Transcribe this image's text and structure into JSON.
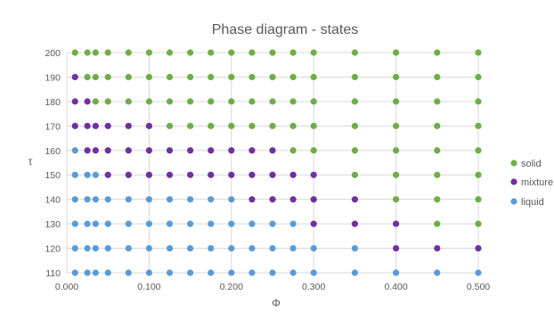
{
  "chart_data": {
    "type": "scatter",
    "title": "Phase diagram - states",
    "xlabel": "Φ",
    "ylabel": "τ",
    "xlim": [
      0,
      0.5
    ],
    "ylim": [
      110,
      200
    ],
    "grid": true,
    "legend_position": "right",
    "x_ticks": [
      0,
      0.1,
      0.2,
      0.3,
      0.4,
      0.5
    ],
    "x_tick_labels": [
      "0.000",
      "0.100",
      "0.200",
      "0.300",
      "0.400",
      "0.500"
    ],
    "y_ticks": [
      110,
      120,
      130,
      140,
      150,
      160,
      170,
      180,
      190,
      200
    ],
    "y_tick_labels": [
      "110",
      "120",
      "130",
      "140",
      "150",
      "160",
      "170",
      "180",
      "190",
      "200"
    ],
    "series": [
      {
        "name": "solid",
        "color": "#70AD47",
        "points": [
          [
            0.01,
            200
          ],
          [
            0.025,
            200
          ],
          [
            0.035,
            200
          ],
          [
            0.05,
            200
          ],
          [
            0.075,
            200
          ],
          [
            0.1,
            200
          ],
          [
            0.125,
            200
          ],
          [
            0.15,
            200
          ],
          [
            0.175,
            200
          ],
          [
            0.2,
            200
          ],
          [
            0.225,
            200
          ],
          [
            0.25,
            200
          ],
          [
            0.275,
            200
          ],
          [
            0.3,
            200
          ],
          [
            0.35,
            200
          ],
          [
            0.4,
            200
          ],
          [
            0.45,
            200
          ],
          [
            0.5,
            200
          ],
          [
            0.025,
            190
          ],
          [
            0.035,
            190
          ],
          [
            0.05,
            190
          ],
          [
            0.075,
            190
          ],
          [
            0.1,
            190
          ],
          [
            0.125,
            190
          ],
          [
            0.15,
            190
          ],
          [
            0.175,
            190
          ],
          [
            0.2,
            190
          ],
          [
            0.225,
            190
          ],
          [
            0.25,
            190
          ],
          [
            0.275,
            190
          ],
          [
            0.3,
            190
          ],
          [
            0.35,
            190
          ],
          [
            0.4,
            190
          ],
          [
            0.45,
            190
          ],
          [
            0.5,
            190
          ],
          [
            0.035,
            180
          ],
          [
            0.05,
            180
          ],
          [
            0.075,
            180
          ],
          [
            0.1,
            180
          ],
          [
            0.125,
            180
          ],
          [
            0.15,
            180
          ],
          [
            0.175,
            180
          ],
          [
            0.2,
            180
          ],
          [
            0.225,
            180
          ],
          [
            0.25,
            180
          ],
          [
            0.275,
            180
          ],
          [
            0.3,
            180
          ],
          [
            0.35,
            180
          ],
          [
            0.4,
            180
          ],
          [
            0.45,
            180
          ],
          [
            0.5,
            180
          ],
          [
            0.125,
            170
          ],
          [
            0.15,
            170
          ],
          [
            0.175,
            170
          ],
          [
            0.2,
            170
          ],
          [
            0.225,
            170
          ],
          [
            0.25,
            170
          ],
          [
            0.275,
            170
          ],
          [
            0.3,
            170
          ],
          [
            0.35,
            170
          ],
          [
            0.4,
            170
          ],
          [
            0.45,
            170
          ],
          [
            0.5,
            170
          ],
          [
            0.275,
            160
          ],
          [
            0.3,
            160
          ],
          [
            0.35,
            160
          ],
          [
            0.4,
            160
          ],
          [
            0.45,
            160
          ],
          [
            0.5,
            160
          ],
          [
            0.35,
            150
          ],
          [
            0.4,
            150
          ],
          [
            0.45,
            150
          ],
          [
            0.5,
            150
          ],
          [
            0.4,
            140
          ],
          [
            0.45,
            140
          ],
          [
            0.5,
            140
          ],
          [
            0.45,
            130
          ],
          [
            0.5,
            130
          ]
        ]
      },
      {
        "name": "mixture",
        "color": "#7030A0",
        "points": [
          [
            0.01,
            190
          ],
          [
            0.01,
            180
          ],
          [
            0.025,
            180
          ],
          [
            0.01,
            170
          ],
          [
            0.025,
            170
          ],
          [
            0.035,
            170
          ],
          [
            0.05,
            170
          ],
          [
            0.075,
            170
          ],
          [
            0.1,
            170
          ],
          [
            0.025,
            160
          ],
          [
            0.035,
            160
          ],
          [
            0.05,
            160
          ],
          [
            0.075,
            160
          ],
          [
            0.1,
            160
          ],
          [
            0.125,
            160
          ],
          [
            0.15,
            160
          ],
          [
            0.175,
            160
          ],
          [
            0.2,
            160
          ],
          [
            0.225,
            160
          ],
          [
            0.25,
            160
          ],
          [
            0.05,
            150
          ],
          [
            0.075,
            150
          ],
          [
            0.1,
            150
          ],
          [
            0.125,
            150
          ],
          [
            0.15,
            150
          ],
          [
            0.175,
            150
          ],
          [
            0.2,
            150
          ],
          [
            0.225,
            150
          ],
          [
            0.25,
            150
          ],
          [
            0.275,
            150
          ],
          [
            0.3,
            150
          ],
          [
            0.225,
            140
          ],
          [
            0.25,
            140
          ],
          [
            0.275,
            140
          ],
          [
            0.3,
            140
          ],
          [
            0.35,
            140
          ],
          [
            0.3,
            130
          ],
          [
            0.35,
            130
          ],
          [
            0.4,
            130
          ],
          [
            0.4,
            120
          ],
          [
            0.45,
            120
          ],
          [
            0.5,
            120
          ]
        ]
      },
      {
        "name": "liquid",
        "color": "#5B9BD5",
        "points": [
          [
            0.01,
            160
          ],
          [
            0.01,
            150
          ],
          [
            0.025,
            150
          ],
          [
            0.035,
            150
          ],
          [
            0.01,
            140
          ],
          [
            0.025,
            140
          ],
          [
            0.035,
            140
          ],
          [
            0.05,
            140
          ],
          [
            0.075,
            140
          ],
          [
            0.1,
            140
          ],
          [
            0.125,
            140
          ],
          [
            0.15,
            140
          ],
          [
            0.175,
            140
          ],
          [
            0.2,
            140
          ],
          [
            0.01,
            130
          ],
          [
            0.025,
            130
          ],
          [
            0.035,
            130
          ],
          [
            0.05,
            130
          ],
          [
            0.075,
            130
          ],
          [
            0.1,
            130
          ],
          [
            0.125,
            130
          ],
          [
            0.15,
            130
          ],
          [
            0.175,
            130
          ],
          [
            0.2,
            130
          ],
          [
            0.225,
            130
          ],
          [
            0.25,
            130
          ],
          [
            0.275,
            130
          ],
          [
            0.01,
            120
          ],
          [
            0.025,
            120
          ],
          [
            0.035,
            120
          ],
          [
            0.05,
            120
          ],
          [
            0.075,
            120
          ],
          [
            0.1,
            120
          ],
          [
            0.125,
            120
          ],
          [
            0.15,
            120
          ],
          [
            0.175,
            120
          ],
          [
            0.2,
            120
          ],
          [
            0.225,
            120
          ],
          [
            0.25,
            120
          ],
          [
            0.275,
            120
          ],
          [
            0.3,
            120
          ],
          [
            0.35,
            120
          ],
          [
            0.01,
            110
          ],
          [
            0.025,
            110
          ],
          [
            0.035,
            110
          ],
          [
            0.05,
            110
          ],
          [
            0.075,
            110
          ],
          [
            0.1,
            110
          ],
          [
            0.125,
            110
          ],
          [
            0.15,
            110
          ],
          [
            0.175,
            110
          ],
          [
            0.2,
            110
          ],
          [
            0.225,
            110
          ],
          [
            0.25,
            110
          ],
          [
            0.275,
            110
          ],
          [
            0.3,
            110
          ],
          [
            0.35,
            110
          ],
          [
            0.4,
            110
          ],
          [
            0.45,
            110
          ],
          [
            0.5,
            110
          ]
        ]
      }
    ]
  }
}
